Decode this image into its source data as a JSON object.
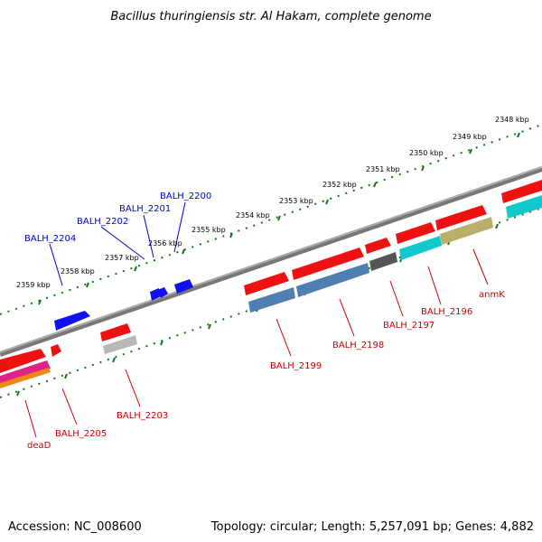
{
  "title": "Bacillus thuringiensis str. Al Hakam, complete genome",
  "footer": {
    "accession": "Accession: NC_008600",
    "topology": "Topology: circular; Length: 5,257,091 bp; Genes: 4,882"
  },
  "ruler_labels": [
    "2348 kbp",
    "2349 kbp",
    "2350 kbp",
    "2351 kbp",
    "2352 kbp",
    "2353 kbp",
    "2354 kbp",
    "2355 kbp",
    "2356 kbp",
    "2357 kbp",
    "2358 kbp",
    "2359 kbp"
  ],
  "upper_labels": [
    "BALH_2200",
    "BALH_2201",
    "BALH_2202",
    "BALH_2204"
  ],
  "lower_labels": [
    "anmK",
    "BALH_2196",
    "BALH_2197",
    "BALH_2198",
    "BALH_2199",
    "BALH_2203",
    "BALH_2205",
    "deaD"
  ],
  "colors": {
    "blue_label": "#0000cc",
    "red_label": "#cc0000",
    "backbone": "#888888",
    "tick": "#117711",
    "gene_red": "#ee1111",
    "gene_blue": "#1111ee",
    "gene_steel": "#4f7fb0",
    "gene_dark": "#555555",
    "gene_cyan": "#11c8cc",
    "gene_khaki": "#b8b06a",
    "gene_gray": "#b8b8b8"
  }
}
